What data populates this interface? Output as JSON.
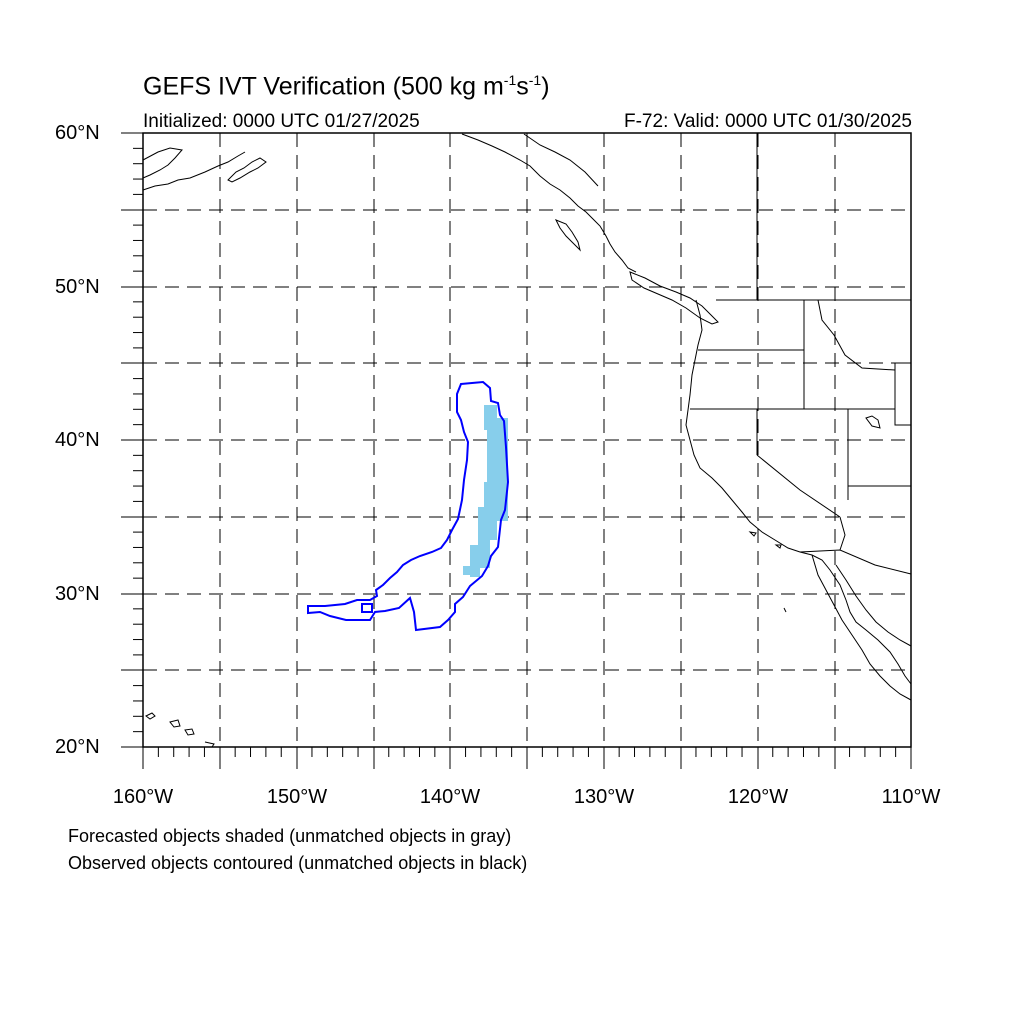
{
  "title": {
    "main": "GEFS IVT Verification (500 kg m",
    "sup1": "-1",
    "mid": "s",
    "sup2": "-1",
    "end": ")"
  },
  "initialized": "Initialized: 0000 UTC 01/27/2025",
  "valid": "F-72: Valid: 0000 UTC 01/30/2025",
  "map": {
    "lon_range": [
      -160,
      -110
    ],
    "lat_range": [
      20,
      60
    ],
    "y_tick_labels": [
      "60°N",
      "50°N",
      "40°N",
      "30°N",
      "20°N"
    ],
    "x_tick_labels": [
      "160°W",
      "150°W",
      "140°W",
      "130°W",
      "120°W",
      "110°W"
    ],
    "gridlines": "dashed every 5°",
    "forecast_color": "#87ceeb",
    "observed_color": "#0000ff"
  },
  "legend": {
    "line1": "Forecasted objects shaded (unmatched objects in gray)",
    "line2": "Observed objects contoured (unmatched objects in black)"
  }
}
